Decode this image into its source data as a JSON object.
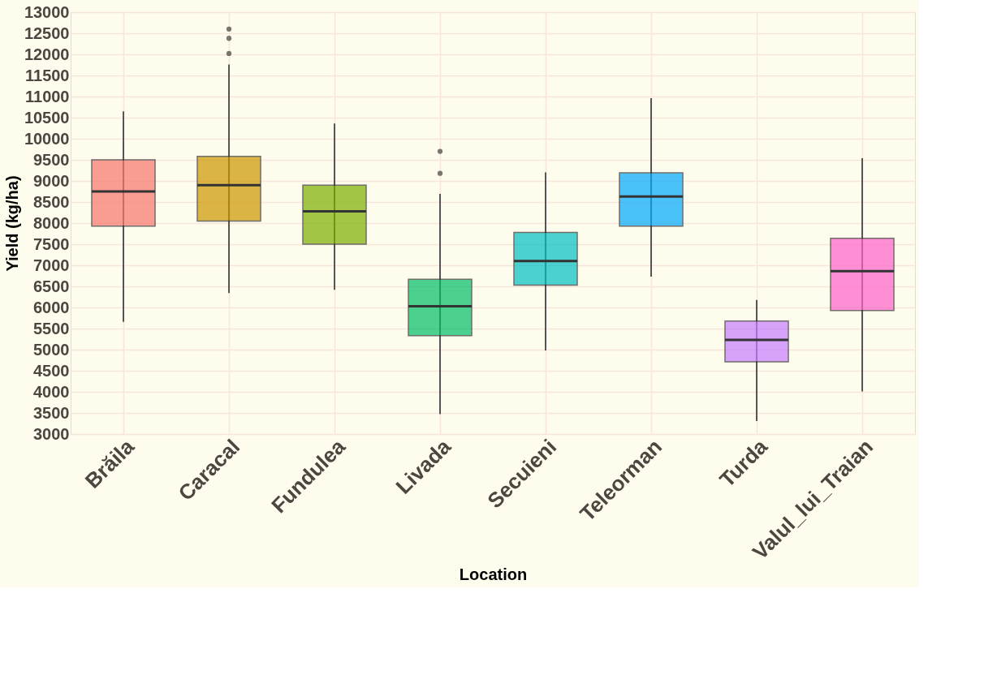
{
  "chart_data": {
    "type": "box",
    "xlabel": "Location",
    "ylabel": "Yield (kg/ha)",
    "categories": [
      "Brăila",
      "Caracal",
      "Fundulea",
      "Livada",
      "Secuieni",
      "Teleorman",
      "Turda",
      "Valul_lui_Traian"
    ],
    "colors": [
      "#f8766d",
      "#cd9600",
      "#7cae00",
      "#00be67",
      "#00bfc4",
      "#00a9ff",
      "#c77cff",
      "#ff61cc"
    ],
    "boxes": [
      {
        "low": 5660,
        "q1": 7930,
        "median": 8750,
        "q3": 9500,
        "high": 10650
      },
      {
        "low": 6340,
        "q1": 8050,
        "median": 8900,
        "q3": 9580,
        "high": 11760,
        "outliers": [
          12020,
          12380,
          12600
        ]
      },
      {
        "low": 6420,
        "q1": 7500,
        "median": 8280,
        "q3": 8900,
        "high": 10360
      },
      {
        "low": 3470,
        "q1": 5330,
        "median": 6030,
        "q3": 6670,
        "high": 8690,
        "outliers": [
          9180,
          9700
        ]
      },
      {
        "low": 4980,
        "q1": 6530,
        "median": 7100,
        "q3": 7780,
        "high": 9200
      },
      {
        "low": 6730,
        "q1": 7930,
        "median": 8630,
        "q3": 9190,
        "high": 10960
      },
      {
        "low": 3310,
        "q1": 4710,
        "median": 5230,
        "q3": 5680,
        "high": 6180
      },
      {
        "low": 4010,
        "q1": 5930,
        "median": 6860,
        "q3": 7640,
        "high": 9540
      }
    ],
    "ylim": [
      3000,
      13000
    ],
    "yticks": [
      3000,
      3500,
      4000,
      4500,
      5000,
      5500,
      6000,
      6500,
      7000,
      7500,
      8000,
      8500,
      9000,
      9500,
      10000,
      10500,
      11000,
      11500,
      12000,
      12500,
      13000
    ],
    "grid": true
  }
}
